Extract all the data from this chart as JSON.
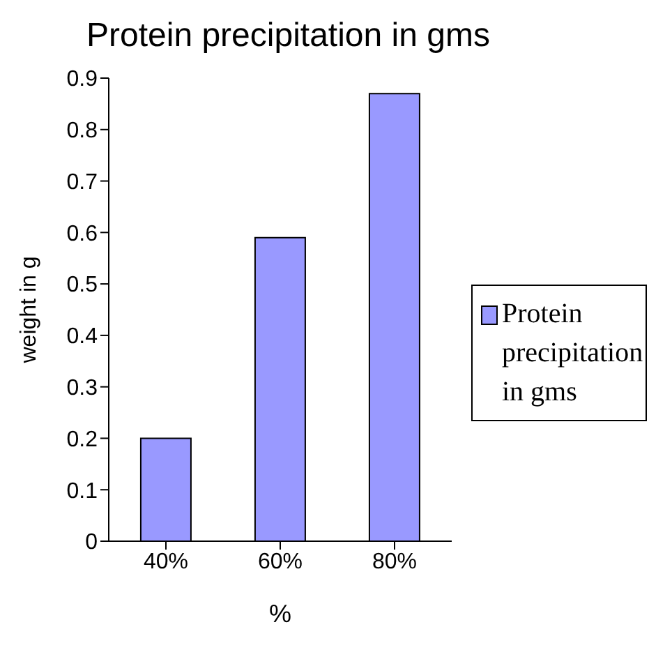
{
  "chart_data": {
    "type": "bar",
    "title": "Protein precipitation in gms",
    "xlabel": "%",
    "ylabel": "weight in g",
    "categories": [
      "40%",
      "60%",
      "80%"
    ],
    "series": [
      {
        "name": "Protein precipitation in gms",
        "color": "#9999ff",
        "values": [
          0.2,
          0.59,
          0.87
        ]
      }
    ],
    "ylim": [
      0,
      0.9
    ],
    "yticks": [
      0,
      0.1,
      0.2,
      0.3,
      0.4,
      0.5,
      0.6,
      0.7,
      0.8,
      0.9
    ],
    "grid": false,
    "legend": "right"
  }
}
